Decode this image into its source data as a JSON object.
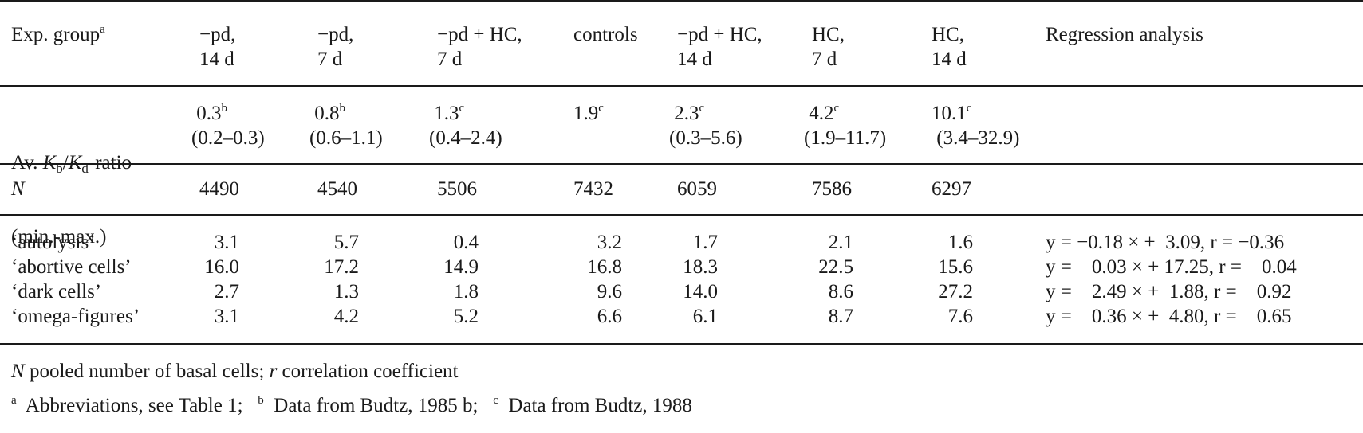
{
  "table": {
    "header": {
      "exp_group": "Exp. group",
      "exp_group_sup": "a",
      "columns": [
        {
          "line1": "−pd,",
          "line2": "14 d"
        },
        {
          "line1": "−pd,",
          "line2": "7 d"
        },
        {
          "line1": "−pd + HC,",
          "line2": "7 d"
        },
        {
          "line1": "controls",
          "line2": ""
        },
        {
          "line1": "−pd + HC,",
          "line2": "14 d"
        },
        {
          "line1": "HC,",
          "line2": "7 d"
        },
        {
          "line1": "HC,",
          "line2": "14 d"
        }
      ],
      "regression": "Regression analysis"
    },
    "ratio_row": {
      "label_prefix": "Av. ",
      "label_K": "K",
      "label_b": "b",
      "label_slash": "/",
      "label_d": "d",
      "label_suffix": "-ratio",
      "label_line2": "(min.-max.)",
      "values": [
        {
          "avg": "0.3",
          "sup": "b",
          "range": "(0.2–0.3)"
        },
        {
          "avg": "0.8",
          "sup": "b",
          "range": "(0.6–1.1)"
        },
        {
          "avg": "1.3",
          "sup": "c",
          "range": "(0.4–2.4)"
        },
        {
          "avg": "1.9",
          "sup": "c",
          "range": ""
        },
        {
          "avg": "2.3",
          "sup": "c",
          "range": "(0.3–5.6)"
        },
        {
          "avg": "4.2",
          "sup": "c",
          "range": "(1.9–11.7)"
        },
        {
          "avg": "10.1",
          "sup": "c",
          "range": "(3.4–32.9)"
        }
      ]
    },
    "n_row": {
      "label": "N",
      "values": [
        "4490",
        "4540",
        "5506",
        "7432",
        "6059",
        "7586",
        "6297"
      ]
    },
    "data_rows": [
      {
        "label": "‘autolysis’",
        "values": [
          "3.1",
          "5.7",
          "0.4",
          "3.2",
          "1.7",
          "2.1",
          "1.6"
        ],
        "regression": "y = −0.18 × +  3.09, r = −0.36"
      },
      {
        "label": "‘abortive cells’",
        "values": [
          "16.0",
          "17.2",
          "14.9",
          "16.8",
          "18.3",
          "22.5",
          "15.6"
        ],
        "regression": "y =    0.03 × + 17.25, r =    0.04"
      },
      {
        "label": "‘dark cells’",
        "values": [
          "2.7",
          "1.3",
          "1.8",
          "9.6",
          "14.0",
          "8.6",
          "27.2"
        ],
        "regression": "y =    2.49 × +  1.88, r =    0.92"
      },
      {
        "label": "‘omega-figures’",
        "values": [
          "3.1",
          "4.2",
          "5.2",
          "6.6",
          "6.1",
          "8.7",
          "7.6"
        ],
        "regression": "y =    0.36 × +  4.80, r =    0.65"
      }
    ]
  },
  "footnotes": {
    "n_sym": "N",
    "n_text": " pooled number of basal cells; ",
    "r_sym": "r",
    "r_text": " correlation coefficient",
    "a_sup": "a",
    "a_text": "  Abbreviations, see Table 1;   ",
    "b_sup": "b",
    "b_text": "  Data from Budtz, 1985 b;   ",
    "c_sup": "c",
    "c_text": "  Data from Budtz, 1988"
  }
}
